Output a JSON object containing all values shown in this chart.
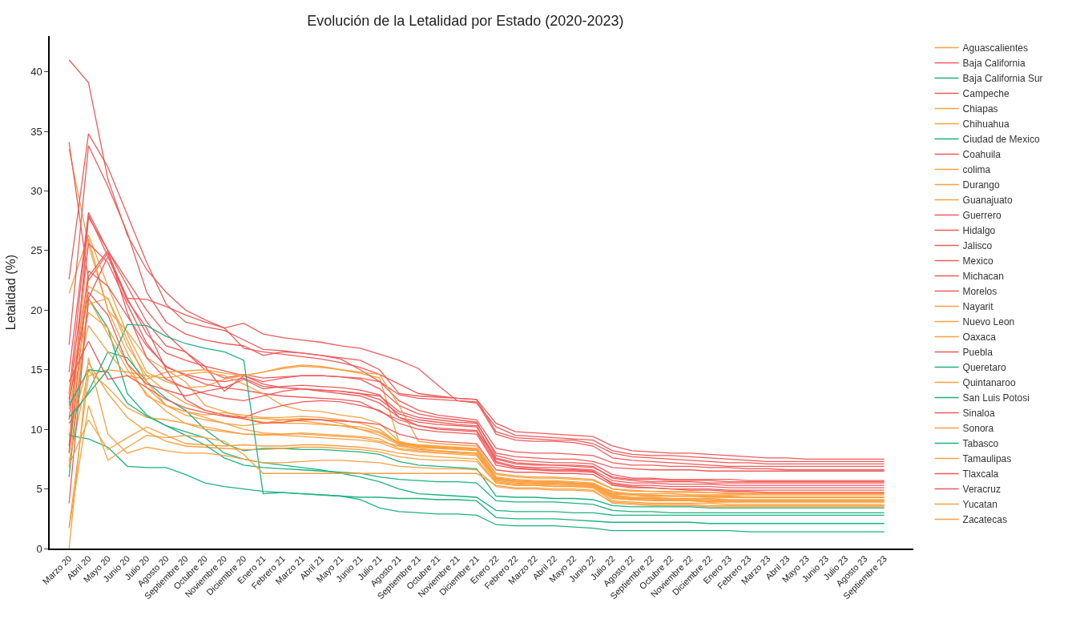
{
  "chart_data": {
    "type": "line",
    "title": "Evolución de la Letalidad por Estado (2020-2023)",
    "ylabel": "Letalidad (%)",
    "categories": [
      "Marzo 20",
      "Abril 20",
      "Mayo 20",
      "Junio 20",
      "Julio 20",
      "Agosto 20",
      "Septiembre 20",
      "Octubre 20",
      "Noviembre 20",
      "Diciembre 20",
      "Enero 21",
      "Febrero 21",
      "Marzo 21",
      "Abril 21",
      "Mayo 21",
      "Junio 21",
      "Julio 21",
      "Agosto 21",
      "Septiembre 21",
      "Octubre 21",
      "Noviembre 21",
      "Diciembre 21",
      "Enero 22",
      "Febrero 22",
      "Marzo 22",
      "Abril 22",
      "Mayo 22",
      "Junio 22",
      "Julio 22",
      "Agosto 22",
      "Septiembre 22",
      "Octubre 22",
      "Noviembre 22",
      "Diciembre 22",
      "Enero 23",
      "Febrero 23",
      "Marzo 23",
      "Abril 23",
      "Mayo 23",
      "Junio 23",
      "Julio 23",
      "Agosto 23",
      "Septiembre 23"
    ],
    "ylim": [
      0,
      43
    ],
    "yticks": [
      0,
      5,
      10,
      15,
      20,
      25,
      30,
      35,
      40
    ],
    "legend": "right",
    "marker": "none",
    "line_style": "solid",
    "series": [
      {
        "name": "Aguascalientes",
        "color": "#f9a040",
        "values": [
          33.5,
          25.5,
          20.0,
          16.4,
          13.5,
          12.0,
          11.2,
          10.8,
          10.5,
          10.0,
          9.7,
          9.6,
          9.6,
          9.5,
          9.4,
          9.3,
          9.0,
          8.6,
          8.3,
          8.2,
          8.1,
          8.0,
          5.9,
          5.7,
          5.6,
          5.6,
          5.5,
          5.4,
          4.8,
          4.6,
          4.6,
          4.6,
          4.5,
          4.5,
          4.5,
          4.5,
          4.5,
          4.5,
          4.5,
          4.5,
          4.5,
          4.5,
          4.5
        ]
      },
      {
        "name": "Baja California",
        "color": "#f05a5a",
        "values": [
          41.0,
          39.1,
          31.0,
          26.3,
          23.4,
          21.5,
          20.0,
          19.2,
          18.5,
          16.8,
          16.5,
          16.3,
          16.1,
          15.9,
          15.6,
          15.2,
          14.6,
          13.8,
          13.0,
          12.8,
          12.6,
          12.5,
          10.5,
          9.8,
          9.7,
          9.6,
          9.5,
          9.4,
          8.6,
          8.2,
          8.1,
          8.0,
          8.0,
          7.9,
          7.8,
          7.7,
          7.6,
          7.6,
          7.5,
          7.5,
          7.5,
          7.5,
          7.5
        ]
      },
      {
        "name": "Baja California Sur",
        "color": "#1db27e",
        "values": [
          6.0,
          21.0,
          18.5,
          13.0,
          11.2,
          10.3,
          9.8,
          9.3,
          8.0,
          7.5,
          7.2,
          7.0,
          6.8,
          6.6,
          6.3,
          6.0,
          5.6,
          5.0,
          4.6,
          4.5,
          4.4,
          4.3,
          3.2,
          3.1,
          3.1,
          3.1,
          3.0,
          3.0,
          2.8,
          2.8,
          2.8,
          2.8,
          2.8,
          2.8,
          2.8,
          2.8,
          2.8,
          2.8,
          2.8,
          2.8,
          2.8,
          2.8,
          2.8
        ]
      },
      {
        "name": "Campeche",
        "color": "#f05a5a",
        "values": [
          34.1,
          22.5,
          24.8,
          21.0,
          20.9,
          20.3,
          19.6,
          19.0,
          18.5,
          18.9,
          18.0,
          17.7,
          17.5,
          17.3,
          17.0,
          16.8,
          16.3,
          15.8,
          15.1,
          13.7,
          12.4,
          12.2,
          10.2,
          9.5,
          9.4,
          9.3,
          9.2,
          9.1,
          8.2,
          7.9,
          7.8,
          7.8,
          7.7,
          7.6,
          7.5,
          7.4,
          7.3,
          7.3,
          7.3,
          7.3,
          7.3,
          7.3,
          7.3
        ]
      },
      {
        "name": "Chiapas",
        "color": "#f9a040",
        "values": [
          21.4,
          26.3,
          22.0,
          18.0,
          14.8,
          14.0,
          13.5,
          13.6,
          14.2,
          14.5,
          14.8,
          15.2,
          15.4,
          15.3,
          15.0,
          14.7,
          14.3,
          8.9,
          8.7,
          8.6,
          8.5,
          8.4,
          6.2,
          6.0,
          5.9,
          5.9,
          5.8,
          5.7,
          5.0,
          4.8,
          4.8,
          4.7,
          4.7,
          4.7,
          4.6,
          4.6,
          4.6,
          4.6,
          4.6,
          4.6,
          4.6,
          4.6,
          4.6
        ]
      },
      {
        "name": "Chihuahua",
        "color": "#f9a040",
        "values": [
          8.2,
          26.0,
          20.0,
          18.2,
          16.0,
          15.0,
          14.0,
          12.0,
          11.5,
          11.0,
          10.9,
          10.8,
          10.7,
          10.5,
          10.3,
          10.0,
          9.7,
          8.8,
          8.5,
          8.4,
          8.3,
          8.2,
          5.9,
          5.7,
          5.6,
          5.5,
          5.5,
          5.3,
          4.6,
          4.5,
          4.4,
          4.4,
          4.4,
          4.4,
          4.3,
          4.3,
          4.3,
          4.3,
          4.3,
          4.3,
          4.3,
          4.3,
          4.3
        ]
      },
      {
        "name": "Ciudad de Mexico",
        "color": "#1db27e",
        "values": [
          10.5,
          13.2,
          16.5,
          16.0,
          14.0,
          12.6,
          11.6,
          10.0,
          8.8,
          8.2,
          8.4,
          8.4,
          8.3,
          8.3,
          8.2,
          8.1,
          7.9,
          7.3,
          7.0,
          6.9,
          6.8,
          6.7,
          4.4,
          4.3,
          4.3,
          4.2,
          4.2,
          4.1,
          3.6,
          3.5,
          3.5,
          3.5,
          3.5,
          3.4,
          3.4,
          3.4,
          3.4,
          3.4,
          3.4,
          3.4,
          3.4,
          3.4,
          3.4
        ]
      },
      {
        "name": "Coahuila",
        "color": "#f05a5a",
        "values": [
          22.6,
          34.8,
          32.0,
          28.0,
          24.0,
          20.5,
          19.0,
          18.6,
          18.3,
          17.5,
          16.7,
          16.6,
          16.4,
          16.2,
          16.0,
          15.8,
          15.0,
          13.0,
          12.8,
          12.7,
          12.6,
          12.5,
          9.8,
          9.3,
          9.2,
          9.1,
          9.1,
          8.8,
          8.0,
          7.7,
          7.6,
          7.5,
          7.4,
          7.3,
          7.2,
          7.2,
          7.1,
          7.1,
          7.1,
          7.1,
          7.1,
          7.1,
          7.1
        ]
      },
      {
        "name": "colima",
        "color": "#f9a040",
        "values": [
          6.8,
          21.0,
          18.0,
          15.0,
          13.0,
          11.5,
          10.5,
          10.0,
          9.8,
          9.6,
          9.5,
          9.6,
          9.7,
          9.6,
          9.5,
          9.4,
          9.2,
          8.4,
          8.2,
          8.1,
          8.0,
          7.9,
          5.8,
          5.6,
          5.5,
          5.5,
          5.4,
          5.3,
          4.5,
          4.3,
          4.3,
          4.2,
          4.2,
          4.2,
          4.1,
          4.1,
          4.1,
          4.1,
          4.1,
          4.1,
          4.1,
          4.1,
          4.1
        ]
      },
      {
        "name": "Durango",
        "color": "#f9a040",
        "values": [
          7.3,
          14.9,
          13.5,
          11.8,
          11.0,
          10.8,
          10.5,
          10.2,
          9.9,
          9.6,
          9.6,
          9.5,
          9.4,
          9.3,
          9.2,
          9.1,
          8.9,
          8.3,
          8.1,
          8.0,
          7.9,
          7.8,
          5.6,
          5.4,
          5.4,
          5.3,
          5.3,
          5.2,
          4.4,
          4.2,
          4.2,
          4.1,
          4.1,
          4.0,
          4.0,
          4.0,
          4.0,
          4.0,
          4.0,
          4.0,
          4.0,
          4.0,
          4.0
        ]
      },
      {
        "name": "Guanajuato",
        "color": "#f9a040",
        "values": [
          8.0,
          20.5,
          21.0,
          17.0,
          14.5,
          13.2,
          12.2,
          11.6,
          11.2,
          10.9,
          10.6,
          10.5,
          10.5,
          10.4,
          10.3,
          10.2,
          9.8,
          8.9,
          8.6,
          8.5,
          8.4,
          8.3,
          5.7,
          5.5,
          5.4,
          5.4,
          5.3,
          5.2,
          4.3,
          4.1,
          4.1,
          4.0,
          4.0,
          3.9,
          3.9,
          3.9,
          3.9,
          3.9,
          3.9,
          3.9,
          3.9,
          3.9,
          3.9
        ]
      },
      {
        "name": "Guerrero",
        "color": "#f05a5a",
        "values": [
          17.1,
          33.8,
          30.4,
          26.5,
          21.5,
          19.0,
          18.0,
          17.5,
          17.2,
          17.0,
          16.2,
          16.5,
          16.4,
          16.2,
          15.9,
          15.0,
          14.0,
          12.9,
          12.6,
          12.5,
          12.4,
          12.3,
          9.6,
          9.1,
          9.0,
          9.0,
          8.9,
          8.6,
          7.6,
          7.4,
          7.3,
          7.2,
          7.1,
          7.0,
          6.9,
          6.9,
          6.9,
          6.9,
          6.9,
          6.9,
          6.9,
          6.9,
          6.9
        ]
      },
      {
        "name": "Hidalgo",
        "color": "#f05a5a",
        "values": [
          14.8,
          28.2,
          25.0,
          22.0,
          19.0,
          17.0,
          16.5,
          15.0,
          14.3,
          14.6,
          14.3,
          14.4,
          14.5,
          14.5,
          14.4,
          14.3,
          14.0,
          12.4,
          11.6,
          11.2,
          11.0,
          10.8,
          8.4,
          8.1,
          8.0,
          8.0,
          7.9,
          7.8,
          7.2,
          7.0,
          7.0,
          6.9,
          6.9,
          6.8,
          6.8,
          6.7,
          6.7,
          6.6,
          6.6,
          6.6,
          6.6,
          6.6,
          6.6
        ]
      },
      {
        "name": "Jalisco",
        "color": "#f05a5a",
        "values": [
          13.0,
          28.0,
          24.5,
          21.0,
          18.0,
          16.4,
          15.8,
          15.3,
          14.9,
          14.5,
          13.8,
          13.5,
          13.4,
          13.3,
          13.2,
          13.0,
          12.8,
          11.5,
          11.0,
          10.8,
          10.6,
          10.5,
          8.0,
          7.7,
          7.6,
          7.5,
          7.5,
          7.3,
          6.8,
          6.7,
          6.6,
          6.6,
          6.6,
          6.5,
          6.5,
          6.5,
          6.5,
          6.5,
          6.5,
          6.5,
          6.5,
          6.5,
          6.5
        ]
      },
      {
        "name": "Mexico",
        "color": "#f05a5a",
        "values": [
          8.6,
          27.8,
          25.0,
          22.5,
          20.0,
          18.0,
          16.5,
          15.3,
          13.2,
          14.5,
          14.0,
          14.3,
          14.5,
          14.5,
          14.4,
          14.2,
          13.4,
          12.0,
          11.3,
          11.0,
          10.8,
          10.6,
          7.8,
          7.4,
          7.3,
          7.2,
          7.2,
          7.1,
          6.2,
          5.9,
          5.9,
          5.8,
          5.8,
          5.8,
          5.8,
          5.7,
          5.7,
          5.7,
          5.7,
          5.7,
          5.7,
          5.7,
          5.7
        ]
      },
      {
        "name": "Michacan",
        "color": "#f05a5a",
        "values": [
          10.8,
          23.3,
          22.0,
          19.5,
          17.0,
          15.3,
          14.5,
          13.8,
          13.5,
          13.3,
          13.0,
          12.8,
          12.7,
          12.6,
          12.5,
          12.3,
          11.5,
          10.8,
          10.3,
          10.1,
          10.0,
          9.9,
          7.5,
          7.1,
          7.0,
          7.0,
          6.9,
          6.8,
          6.0,
          5.8,
          5.8,
          5.7,
          5.7,
          5.7,
          5.6,
          5.6,
          5.6,
          5.6,
          5.6,
          5.6,
          5.6,
          5.6,
          5.6
        ]
      },
      {
        "name": "Morelos",
        "color": "#f05a5a",
        "values": [
          12.5,
          25.6,
          24.0,
          20.5,
          17.2,
          15.2,
          14.6,
          14.2,
          14.0,
          14.3,
          13.6,
          13.5,
          13.4,
          13.2,
          13.0,
          12.8,
          12.2,
          11.0,
          10.6,
          10.4,
          10.3,
          10.2,
          7.6,
          7.2,
          7.1,
          7.0,
          7.0,
          6.9,
          5.9,
          5.7,
          5.6,
          5.6,
          5.6,
          5.5,
          5.5,
          5.5,
          5.5,
          5.5,
          5.5,
          5.5,
          5.5,
          5.5,
          5.5
        ]
      },
      {
        "name": "Nayarit",
        "color": "#f9a040",
        "values": [
          1.8,
          14.5,
          15.0,
          14.8,
          14.5,
          14.3,
          14.6,
          14.8,
          14.5,
          13.8,
          13.0,
          12.0,
          11.6,
          11.5,
          11.2,
          11.0,
          10.5,
          9.0,
          8.6,
          8.5,
          8.4,
          8.3,
          6.0,
          5.8,
          5.7,
          5.7,
          5.6,
          5.5,
          4.7,
          4.5,
          4.5,
          4.4,
          4.4,
          4.4,
          4.4,
          4.3,
          4.3,
          4.3,
          4.3,
          4.3,
          4.3,
          4.3,
          4.3
        ]
      },
      {
        "name": "Nuevo Leon",
        "color": "#f9a040",
        "values": [
          9.5,
          15.6,
          13.0,
          11.0,
          9.8,
          9.0,
          8.6,
          8.5,
          8.4,
          8.3,
          8.3,
          8.4,
          8.5,
          8.5,
          8.4,
          8.3,
          8.1,
          7.7,
          7.5,
          7.4,
          7.4,
          7.3,
          5.5,
          5.3,
          5.3,
          5.2,
          5.2,
          5.1,
          4.2,
          4.1,
          4.0,
          4.0,
          4.0,
          3.9,
          3.9,
          3.9,
          3.9,
          3.9,
          3.9,
          3.9,
          3.9,
          3.9,
          3.9
        ]
      },
      {
        "name": "Oaxaca",
        "color": "#f9a040",
        "values": [
          11.7,
          18.7,
          16.5,
          14.5,
          14.2,
          14.8,
          14.9,
          15.0,
          14.7,
          14.5,
          14.8,
          15.1,
          15.3,
          15.2,
          15.0,
          14.8,
          14.6,
          12.0,
          9.0,
          8.8,
          8.7,
          8.6,
          6.3,
          6.1,
          6.0,
          6.0,
          5.9,
          5.8,
          5.0,
          4.9,
          4.8,
          4.8,
          4.8,
          4.7,
          4.7,
          4.7,
          4.7,
          4.7,
          4.7,
          4.7,
          4.7,
          4.7,
          4.7
        ]
      },
      {
        "name": "Puebla",
        "color": "#f05a5a",
        "values": [
          8.0,
          22.8,
          25.0,
          19.8,
          16.0,
          14.2,
          13.5,
          13.0,
          12.6,
          12.4,
          12.8,
          13.2,
          13.4,
          13.3,
          13.2,
          13.0,
          12.5,
          11.3,
          10.8,
          10.6,
          10.4,
          10.3,
          7.3,
          6.9,
          6.8,
          6.8,
          6.7,
          6.6,
          5.7,
          5.5,
          5.5,
          5.4,
          5.4,
          5.4,
          5.3,
          5.3,
          5.3,
          5.3,
          5.3,
          5.3,
          5.3,
          5.3,
          5.3
        ]
      },
      {
        "name": "Queretaro",
        "color": "#1db27e",
        "values": [
          12.0,
          15.0,
          14.8,
          12.2,
          11.1,
          10.3,
          9.5,
          8.7,
          7.6,
          7.0,
          6.8,
          6.7,
          6.6,
          6.5,
          6.4,
          6.3,
          6.0,
          5.8,
          5.7,
          5.6,
          5.6,
          5.5,
          4.0,
          3.9,
          3.9,
          3.9,
          3.8,
          3.7,
          3.2,
          3.1,
          3.1,
          3.0,
          3.0,
          3.0,
          3.0,
          3.0,
          3.0,
          3.0,
          3.0,
          3.0,
          3.0,
          3.0,
          3.0
        ]
      },
      {
        "name": "Quintanaroo",
        "color": "#f9a040",
        "values": [
          12.8,
          19.8,
          18.5,
          15.5,
          12.8,
          12.0,
          11.5,
          11.0,
          10.5,
          10.3,
          10.5,
          10.8,
          10.9,
          10.8,
          10.5,
          10.0,
          9.5,
          8.7,
          8.4,
          8.2,
          8.1,
          8.0,
          5.8,
          5.6,
          5.5,
          5.5,
          5.4,
          5.3,
          4.4,
          4.2,
          4.2,
          4.1,
          4.1,
          4.1,
          4.0,
          4.0,
          4.0,
          4.0,
          4.0,
          4.0,
          4.0,
          4.0,
          4.0
        ]
      },
      {
        "name": "San Luis Potosi",
        "color": "#1db27e",
        "values": [
          11.0,
          13.0,
          15.0,
          18.8,
          18.7,
          17.8,
          17.2,
          16.8,
          16.5,
          15.8,
          4.6,
          4.7,
          4.6,
          4.5,
          4.4,
          4.3,
          4.3,
          4.2,
          4.2,
          4.1,
          4.1,
          4.0,
          2.6,
          2.5,
          2.5,
          2.5,
          2.4,
          2.3,
          2.2,
          2.2,
          2.2,
          2.2,
          2.2,
          2.1,
          2.1,
          2.1,
          2.1,
          2.1,
          2.1,
          2.1,
          2.1,
          2.1,
          2.1
        ]
      },
      {
        "name": "Sinaloa",
        "color": "#f05a5a",
        "values": [
          3.8,
          21.0,
          24.5,
          20.8,
          18.5,
          15.0,
          12.5,
          11.6,
          11.2,
          11.0,
          11.6,
          12.0,
          12.3,
          12.4,
          12.3,
          12.0,
          11.6,
          10.5,
          10.0,
          9.8,
          9.7,
          9.6,
          7.0,
          6.7,
          6.6,
          6.5,
          6.5,
          6.4,
          5.5,
          5.3,
          5.3,
          5.2,
          5.2,
          5.2,
          5.1,
          5.1,
          5.1,
          5.1,
          5.1,
          5.1,
          5.1,
          5.1,
          5.1
        ]
      },
      {
        "name": "Sonora",
        "color": "#f9a040",
        "values": [
          13.0,
          22.0,
          21.0,
          17.5,
          14.0,
          12.0,
          11.5,
          11.2,
          11.4,
          11.2,
          11.0,
          11.0,
          11.1,
          11.0,
          10.8,
          10.5,
          10.0,
          8.8,
          8.6,
          8.5,
          8.4,
          8.3,
          5.9,
          5.7,
          5.6,
          5.6,
          5.5,
          5.4,
          4.6,
          4.5,
          4.4,
          4.4,
          4.4,
          4.3,
          4.3,
          4.3,
          4.3,
          4.3,
          4.3,
          4.3,
          4.3,
          4.3,
          4.3
        ]
      },
      {
        "name": "Tabasco",
        "color": "#1db27e",
        "values": [
          9.5,
          9.2,
          8.5,
          6.9,
          6.8,
          6.8,
          6.2,
          5.5,
          5.2,
          5.0,
          4.8,
          4.7,
          4.6,
          4.5,
          4.4,
          4.1,
          3.4,
          3.1,
          3.0,
          2.9,
          2.9,
          2.8,
          2.0,
          1.9,
          1.9,
          1.9,
          1.8,
          1.7,
          1.5,
          1.5,
          1.5,
          1.5,
          1.5,
          1.5,
          1.5,
          1.4,
          1.4,
          1.4,
          1.4,
          1.4,
          1.4,
          1.4,
          1.4
        ]
      },
      {
        "name": "Tamaulipas",
        "color": "#f9a040",
        "values": [
          7.0,
          10.8,
          8.3,
          9.3,
          10.2,
          9.5,
          8.8,
          8.7,
          8.6,
          8.7,
          8.6,
          8.6,
          8.7,
          8.7,
          8.6,
          8.5,
          8.3,
          8.0,
          7.8,
          7.7,
          7.6,
          7.5,
          5.5,
          5.3,
          5.3,
          5.2,
          5.2,
          5.1,
          4.0,
          3.9,
          3.8,
          3.8,
          3.8,
          3.8,
          3.7,
          3.7,
          3.7,
          3.7,
          3.7,
          3.7,
          3.7,
          3.7,
          3.7
        ]
      },
      {
        "name": "Tlaxcala",
        "color": "#f05a5a",
        "values": [
          14.0,
          17.4,
          14.2,
          14.5,
          13.5,
          12.5,
          11.8,
          11.4,
          11.1,
          10.9,
          10.5,
          10.6,
          10.8,
          10.8,
          10.7,
          10.6,
          10.4,
          9.6,
          9.2,
          9.0,
          8.9,
          8.8,
          6.6,
          6.4,
          6.4,
          6.3,
          6.3,
          6.2,
          5.3,
          5.1,
          5.1,
          5.0,
          5.0,
          5.0,
          4.9,
          4.9,
          4.9,
          4.9,
          4.9,
          4.9,
          4.9,
          4.9,
          4.9
        ]
      },
      {
        "name": "Veracruz",
        "color": "#f05a5a",
        "values": [
          12.2,
          21.5,
          19.6,
          15.5,
          13.8,
          13.3,
          12.8,
          13.2,
          13.5,
          14.2,
          13.4,
          13.6,
          13.7,
          13.6,
          13.5,
          13.3,
          12.9,
          11.0,
          10.3,
          10.0,
          9.9,
          9.8,
          7.2,
          6.8,
          6.7,
          6.6,
          6.6,
          6.5,
          5.4,
          5.2,
          5.1,
          5.0,
          4.9,
          4.9,
          4.8,
          4.8,
          4.7,
          4.7,
          4.7,
          4.7,
          4.7,
          4.7,
          4.7
        ]
      },
      {
        "name": "Yucatan",
        "color": "#f9a040",
        "values": [
          0.0,
          16.0,
          9.6,
          8.0,
          8.5,
          8.2,
          8.0,
          8.0,
          7.8,
          7.5,
          7.2,
          7.2,
          7.3,
          7.4,
          7.4,
          7.3,
          7.2,
          6.9,
          6.8,
          6.7,
          6.7,
          6.6,
          5.2,
          5.0,
          5.0,
          4.9,
          4.9,
          4.8,
          3.9,
          3.8,
          3.7,
          3.7,
          3.7,
          3.6,
          3.6,
          3.6,
          3.6,
          3.6,
          3.6,
          3.6,
          3.6,
          3.6,
          3.6
        ]
      },
      {
        "name": "Zacatecas",
        "color": "#f9a040",
        "values": [
          1.7,
          12.0,
          7.4,
          8.5,
          9.5,
          9.3,
          9.5,
          9.3,
          9.0,
          7.9,
          6.3,
          6.3,
          6.3,
          6.3,
          6.3,
          6.3,
          6.3,
          6.3,
          6.3,
          6.3,
          6.3,
          6.3,
          5.3,
          5.1,
          5.1,
          5.0,
          5.0,
          4.9,
          3.8,
          3.7,
          3.6,
          3.6,
          3.6,
          3.5,
          3.5,
          3.5,
          3.5,
          3.5,
          3.5,
          3.5,
          3.5,
          3.5,
          3.5
        ]
      }
    ]
  }
}
